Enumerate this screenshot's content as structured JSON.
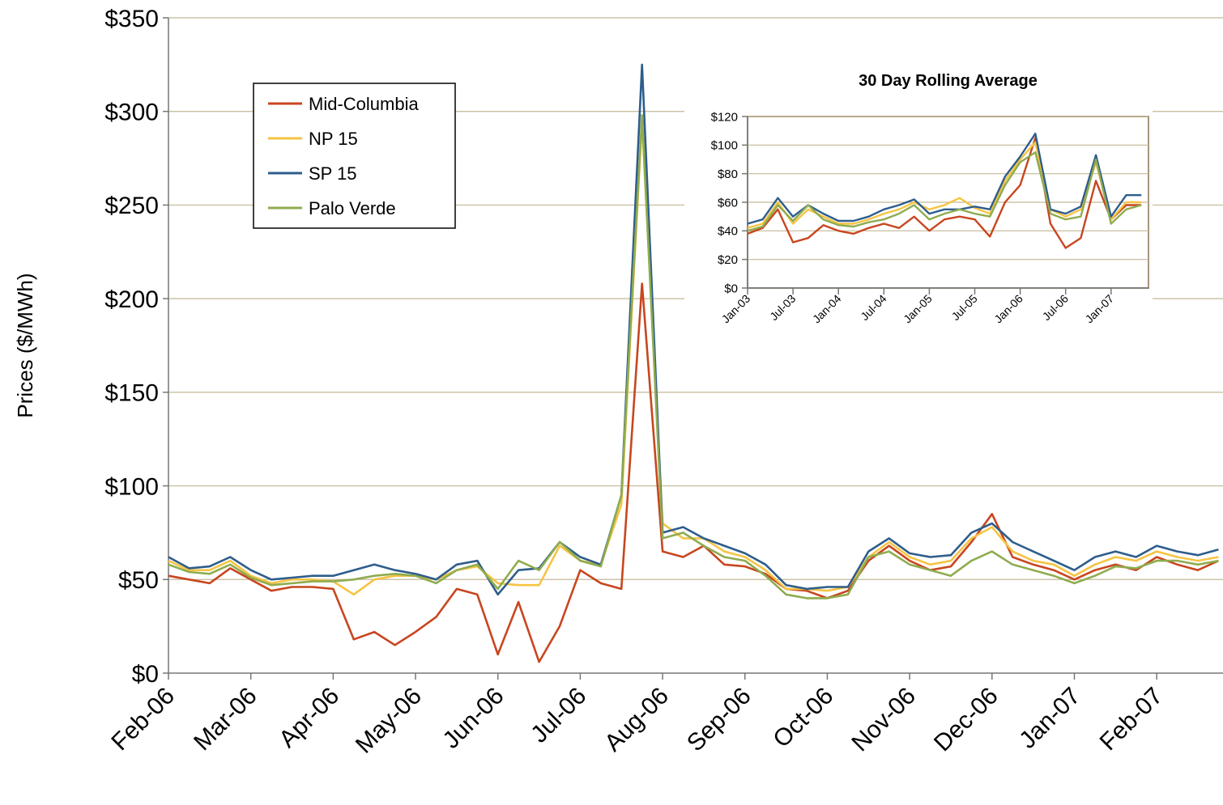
{
  "chart_data": [
    {
      "type": "line",
      "y_label": "Prices ($/MWh)",
      "categories": [
        "Feb-06",
        null,
        null,
        null,
        "Mar-06",
        null,
        null,
        null,
        "Apr-06",
        null,
        null,
        null,
        "May-06",
        null,
        null,
        null,
        "Jun-06",
        null,
        null,
        null,
        "Jul-06",
        null,
        null,
        null,
        "Aug-06",
        null,
        null,
        null,
        "Sep-06",
        null,
        null,
        null,
        "Oct-06",
        null,
        null,
        null,
        "Nov-06",
        null,
        null,
        null,
        "Dec-06",
        null,
        null,
        null,
        "Jan-07",
        null,
        null,
        null,
        "Feb-07",
        null,
        null,
        null
      ],
      "ylim": [
        0,
        350
      ],
      "yticks": [
        {
          "value": 0,
          "label": "$0"
        },
        {
          "value": 50,
          "label": "$50"
        },
        {
          "value": 100,
          "label": "$100"
        },
        {
          "value": 150,
          "label": "$150"
        },
        {
          "value": 200,
          "label": "$200"
        },
        {
          "value": 250,
          "label": "$250"
        },
        {
          "value": 300,
          "label": "$300"
        },
        {
          "value": 350,
          "label": "$350"
        }
      ],
      "grid": true,
      "legend": "upper-left",
      "series": [
        {
          "name": "Mid-Columbia",
          "color": "#c8461f",
          "values": [
            52,
            50,
            48,
            56,
            50,
            44,
            46,
            46,
            45,
            18,
            22,
            15,
            22,
            30,
            45,
            42,
            10,
            38,
            6,
            25,
            55,
            48,
            45,
            208,
            65,
            62,
            68,
            58,
            57,
            53,
            45,
            44,
            40,
            44,
            60,
            68,
            60,
            55,
            57,
            70,
            85,
            62,
            58,
            55,
            50,
            55,
            58,
            55,
            62,
            58,
            55,
            60
          ]
        },
        {
          "name": "NP 15",
          "color": "#f6c443",
          "values": [
            60,
            55,
            55,
            60,
            52,
            48,
            50,
            50,
            49,
            42,
            50,
            52,
            52,
            50,
            55,
            57,
            48,
            47,
            47,
            68,
            60,
            58,
            90,
            295,
            80,
            72,
            72,
            65,
            62,
            55,
            45,
            45,
            44,
            46,
            62,
            70,
            62,
            58,
            60,
            72,
            78,
            65,
            60,
            58,
            52,
            58,
            62,
            60,
            65,
            62,
            60,
            62
          ]
        },
        {
          "name": "SP 15",
          "color": "#2e5d8c",
          "values": [
            62,
            56,
            57,
            62,
            55,
            50,
            51,
            52,
            52,
            55,
            58,
            55,
            53,
            50,
            58,
            60,
            42,
            55,
            56,
            70,
            62,
            58,
            95,
            325,
            75,
            78,
            72,
            68,
            64,
            58,
            47,
            45,
            46,
            46,
            65,
            72,
            64,
            62,
            63,
            75,
            80,
            70,
            65,
            60,
            55,
            62,
            65,
            62,
            68,
            65,
            63,
            66
          ]
        },
        {
          "name": "Palo Verde",
          "color": "#8fac4f",
          "values": [
            58,
            54,
            53,
            58,
            51,
            47,
            48,
            49,
            49,
            50,
            52,
            53,
            52,
            48,
            55,
            58,
            45,
            60,
            55,
            70,
            60,
            57,
            95,
            298,
            72,
            75,
            68,
            62,
            60,
            52,
            42,
            40,
            40,
            42,
            62,
            65,
            58,
            55,
            52,
            60,
            65,
            58,
            55,
            52,
            48,
            52,
            57,
            56,
            60,
            60,
            58,
            60
          ]
        }
      ]
    },
    {
      "type": "line",
      "title": "30 Day Rolling Average",
      "categories": [
        "Jan-03",
        null,
        null,
        "Jul-03",
        null,
        null,
        "Jan-04",
        null,
        null,
        "Jul-04",
        null,
        null,
        "Jan-05",
        null,
        null,
        "Jul-05",
        null,
        null,
        "Jan-06",
        null,
        null,
        "Jul-06",
        null,
        null,
        "Jan-07",
        null,
        null
      ],
      "ylim": [
        0,
        120
      ],
      "yticks": [
        {
          "value": 0,
          "label": "$0"
        },
        {
          "value": 20,
          "label": "$20"
        },
        {
          "value": 40,
          "label": "$40"
        },
        {
          "value": 60,
          "label": "$60"
        },
        {
          "value": 80,
          "label": "$80"
        },
        {
          "value": 100,
          "label": "$100"
        },
        {
          "value": 120,
          "label": "$120"
        }
      ],
      "grid": true,
      "series": [
        {
          "name": "Mid-Columbia",
          "color": "#c8461f",
          "values": [
            38,
            42,
            55,
            32,
            35,
            44,
            40,
            38,
            42,
            45,
            42,
            50,
            40,
            48,
            50,
            48,
            36,
            60,
            72,
            105,
            45,
            28,
            35,
            75,
            48,
            58,
            58
          ]
        },
        {
          "name": "NP 15",
          "color": "#f6c443",
          "values": [
            42,
            45,
            60,
            45,
            55,
            50,
            45,
            45,
            48,
            52,
            55,
            60,
            55,
            58,
            63,
            56,
            52,
            75,
            90,
            102,
            55,
            50,
            55,
            88,
            48,
            60,
            60
          ]
        },
        {
          "name": "SP 15",
          "color": "#2e5d8c",
          "values": [
            45,
            48,
            63,
            50,
            58,
            52,
            47,
            47,
            50,
            55,
            58,
            62,
            52,
            55,
            55,
            57,
            55,
            78,
            92,
            108,
            55,
            52,
            57,
            93,
            50,
            65,
            65
          ]
        },
        {
          "name": "Palo Verde",
          "color": "#8fac4f",
          "values": [
            40,
            43,
            58,
            47,
            58,
            48,
            44,
            43,
            46,
            48,
            52,
            58,
            48,
            52,
            55,
            52,
            50,
            72,
            88,
            95,
            52,
            48,
            50,
            90,
            45,
            55,
            58
          ]
        }
      ]
    }
  ]
}
